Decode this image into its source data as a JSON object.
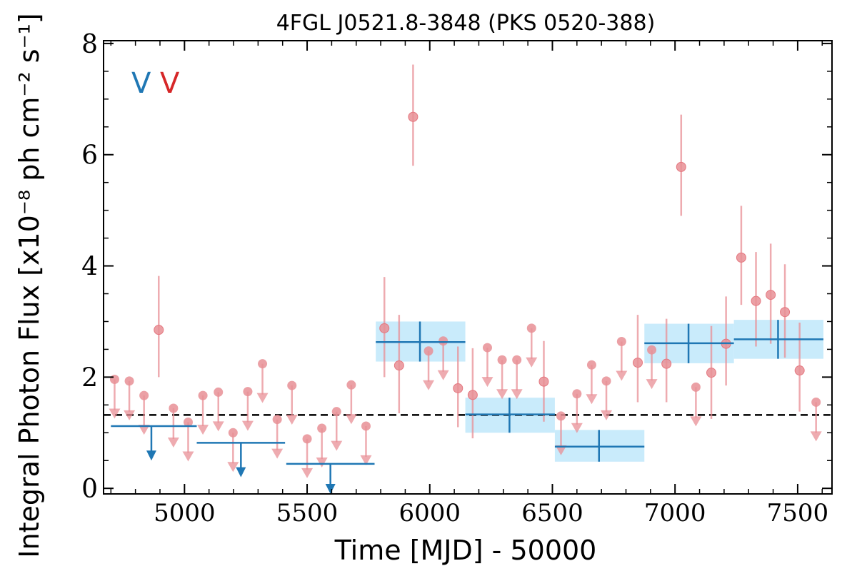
{
  "chart_data": {
    "type": "scatter",
    "title": "4FGL J0521.8-3848 (PKS 0520-388)",
    "xlabel": "Time [MJD] - 50000",
    "ylabel": "Integral Photon Flux [x10⁻⁸ ph cm⁻² s⁻¹]",
    "xlim": [
      4670,
      7640
    ],
    "ylim": [
      -0.1,
      8.05
    ],
    "x_ticks": [
      5000,
      5500,
      6000,
      6500,
      7000,
      7500
    ],
    "y_ticks": [
      0,
      2,
      4,
      6,
      8
    ],
    "reference_line": 1.32,
    "legend_marks": [
      {
        "text": "V",
        "color": "#1f77b4"
      },
      {
        "text": "V",
        "color": "#d62728"
      }
    ],
    "colors": {
      "short_bins": "#e88f95",
      "long_bins": "#1f77b4",
      "band_fill": "#c9ebfb",
      "reference_line": "#000000"
    },
    "series": [
      {
        "detections": [
          {
            "x": 4895,
            "y": 2.85,
            "lo": 2.0,
            "hi": 3.82
          },
          {
            "x": 5815,
            "y": 2.88,
            "lo": 2.0,
            "hi": 3.8
          },
          {
            "x": 5875,
            "y": 2.21,
            "lo": 1.35,
            "hi": 3.12
          },
          {
            "x": 5932,
            "y": 6.68,
            "lo": 5.8,
            "hi": 7.62
          },
          {
            "x": 6115,
            "y": 1.8,
            "lo": 1.1,
            "hi": 2.55
          },
          {
            "x": 6175,
            "y": 1.68,
            "lo": 0.9,
            "hi": 2.52
          },
          {
            "x": 6465,
            "y": 1.92,
            "lo": 1.2,
            "hi": 2.65
          },
          {
            "x": 6848,
            "y": 2.26,
            "lo": 1.55,
            "hi": 3.12
          },
          {
            "x": 6965,
            "y": 2.24,
            "lo": 1.55,
            "hi": 3.05
          },
          {
            "x": 7025,
            "y": 5.78,
            "lo": 4.9,
            "hi": 6.72
          },
          {
            "x": 7148,
            "y": 2.08,
            "lo": 1.25,
            "hi": 2.92
          },
          {
            "x": 7208,
            "y": 2.6,
            "lo": 1.85,
            "hi": 3.45
          },
          {
            "x": 7270,
            "y": 4.15,
            "lo": 3.3,
            "hi": 5.08
          },
          {
            "x": 7330,
            "y": 3.37,
            "lo": 2.55,
            "hi": 4.25
          },
          {
            "x": 7390,
            "y": 3.48,
            "lo": 2.6,
            "hi": 4.4
          },
          {
            "x": 7448,
            "y": 3.17,
            "lo": 2.35,
            "hi": 4.03
          },
          {
            "x": 7508,
            "y": 2.12,
            "lo": 1.38,
            "hi": 2.98
          }
        ],
        "upper_limits": [
          {
            "x": 4715,
            "y": 1.96
          },
          {
            "x": 4775,
            "y": 1.93
          },
          {
            "x": 4835,
            "y": 1.67
          },
          {
            "x": 4955,
            "y": 1.44
          },
          {
            "x": 5015,
            "y": 1.19
          },
          {
            "x": 5075,
            "y": 1.67
          },
          {
            "x": 5138,
            "y": 1.73
          },
          {
            "x": 5198,
            "y": 1.0
          },
          {
            "x": 5258,
            "y": 1.74
          },
          {
            "x": 5318,
            "y": 2.24
          },
          {
            "x": 5378,
            "y": 1.24
          },
          {
            "x": 5438,
            "y": 1.85
          },
          {
            "x": 5500,
            "y": 0.89
          },
          {
            "x": 5560,
            "y": 1.08
          },
          {
            "x": 5620,
            "y": 1.38
          },
          {
            "x": 5680,
            "y": 1.86
          },
          {
            "x": 5740,
            "y": 1.12
          },
          {
            "x": 5995,
            "y": 2.47
          },
          {
            "x": 6055,
            "y": 2.65
          },
          {
            "x": 6235,
            "y": 2.53
          },
          {
            "x": 6295,
            "y": 2.31
          },
          {
            "x": 6355,
            "y": 2.31
          },
          {
            "x": 6415,
            "y": 2.88
          },
          {
            "x": 6535,
            "y": 1.3
          },
          {
            "x": 6600,
            "y": 1.7
          },
          {
            "x": 6660,
            "y": 2.22
          },
          {
            "x": 6720,
            "y": 1.93
          },
          {
            "x": 6782,
            "y": 2.64
          },
          {
            "x": 6905,
            "y": 2.49
          },
          {
            "x": 7085,
            "y": 1.82
          },
          {
            "x": 7575,
            "y": 1.55
          }
        ]
      },
      {
        "detections": [
          {
            "x": 5960,
            "y": 2.63,
            "x_lo": 5780,
            "x_hi": 6145,
            "y_lo": 2.28,
            "y_hi": 3.0
          },
          {
            "x": 6325,
            "y": 1.33,
            "x_lo": 6145,
            "x_hi": 6510,
            "y_lo": 1.0,
            "y_hi": 1.63
          },
          {
            "x": 6690,
            "y": 0.75,
            "x_lo": 6510,
            "x_hi": 6875,
            "y_lo": 0.48,
            "y_hi": 1.05
          },
          {
            "x": 7055,
            "y": 2.61,
            "x_lo": 6875,
            "x_hi": 7240,
            "y_lo": 2.25,
            "y_hi": 2.96
          },
          {
            "x": 7420,
            "y": 2.68,
            "x_lo": 7240,
            "x_hi": 7605,
            "y_lo": 2.33,
            "y_hi": 3.03
          }
        ],
        "upper_limits": [
          {
            "x": 4865,
            "y": 1.12,
            "x_lo": 4700,
            "x_hi": 5050,
            "arrow_to": 0.5
          },
          {
            "x": 5230,
            "y": 0.82,
            "x_lo": 5050,
            "x_hi": 5410,
            "arrow_to": 0.2
          },
          {
            "x": 5595,
            "y": 0.44,
            "x_lo": 5415,
            "x_hi": 5775,
            "arrow_to": -0.1
          }
        ]
      }
    ]
  }
}
